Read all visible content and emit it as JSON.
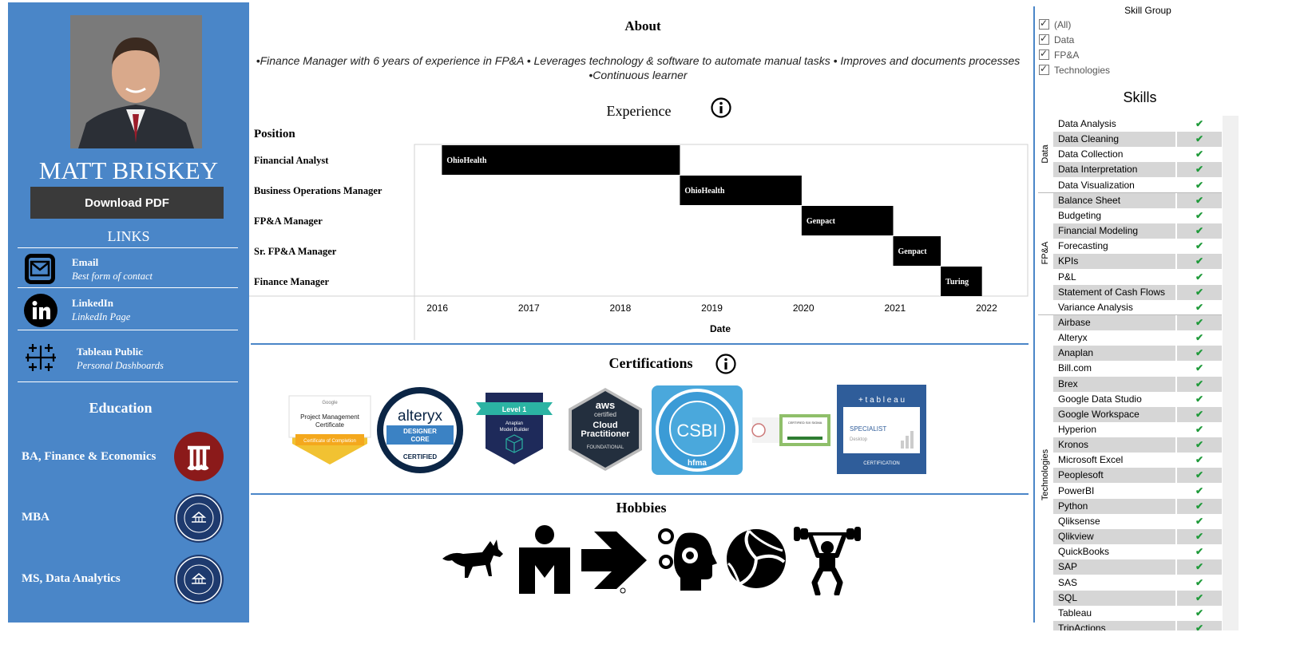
{
  "profile": {
    "name": "MATT BRISKEY",
    "download_label": "Download PDF",
    "links_title": "LINKS",
    "links": [
      {
        "title": "Email",
        "subtitle": "Best form of contact",
        "icon": "mail-icon"
      },
      {
        "title": "LinkedIn",
        "subtitle": "LinkedIn Page",
        "icon": "linkedin-icon"
      },
      {
        "title": "Tableau Public",
        "subtitle": "Personal Dashboards",
        "icon": "tableau-icon"
      }
    ],
    "education_title": "Education",
    "education": [
      {
        "degree": "BA, Finance & Economics",
        "icon": "ohio-university-seal"
      },
      {
        "degree": "MBA",
        "icon": "franklin-university-seal"
      },
      {
        "degree": "MS, Data Analytics",
        "icon": "franklin-university-seal"
      }
    ],
    "seal_text": "FRANKLIN UNIVERSITY",
    "colors": {
      "panel": "#4a86c8",
      "button": "#3a3a3a",
      "ohio_seal": "#8b1a1a",
      "franklin_seal": "#1e3a6e"
    }
  },
  "about": {
    "title": "About",
    "line1": "•Finance Manager with 6 years of experience in FP&A • Leverages technology & software to automate manual tasks • Improves and documents processes",
    "line2": "•Continuous learner"
  },
  "experience": {
    "title": "Experience",
    "position_header": "Position",
    "date_label": "Date"
  },
  "chart_data": {
    "type": "gantt",
    "categories": [
      "Financial Analyst",
      "Business Operations Manager",
      "FP&A Manager",
      "Sr. FP&A Manager",
      "Finance Manager"
    ],
    "bars": [
      {
        "position": "Financial Analyst",
        "start": 2016.05,
        "end": 2018.65,
        "label": "OhioHealth"
      },
      {
        "position": "Business Operations Manager",
        "start": 2018.65,
        "end": 2019.98,
        "label": "OhioHealth"
      },
      {
        "position": "FP&A Manager",
        "start": 2019.98,
        "end": 2020.98,
        "label": "Genpact"
      },
      {
        "position": "Sr. FP&A Manager",
        "start": 2020.98,
        "end": 2021.5,
        "label": "Genpact"
      },
      {
        "position": "Finance Manager",
        "start": 2021.5,
        "end": 2021.95,
        "label": "Turing"
      }
    ],
    "x_ticks": [
      "2016",
      "2017",
      "2018",
      "2019",
      "2020",
      "2021",
      "2022"
    ],
    "xlim": [
      2015.75,
      2022.45
    ],
    "xlabel": "Date",
    "ylabel": "Position",
    "bar_color": "#000000"
  },
  "certifications": {
    "title": "Certifications",
    "items": [
      {
        "name": "google-pm-badge",
        "lines": [
          "Google",
          "Project Management",
          "Certificate",
          "Certificate of Completion"
        ]
      },
      {
        "name": "alteryx-badge",
        "lines": [
          "alteryx",
          "DESIGNER",
          "CORE",
          "CERTIFIED"
        ]
      },
      {
        "name": "anaplan-badge",
        "lines": [
          "Level 1",
          "Anaplan",
          "Model Builder"
        ]
      },
      {
        "name": "aws-badge",
        "lines": [
          "aws",
          "certified",
          "Cloud",
          "Practitioner",
          "FOUNDATIONAL"
        ]
      },
      {
        "name": "csbi-badge",
        "lines": [
          "CSBI",
          "hfma"
        ]
      },
      {
        "name": "scrum-badge",
        "lines": [
          "CERTIFIED SIX SIGMA"
        ]
      },
      {
        "name": "tableau-badge",
        "lines": [
          "+ t a b l e a u",
          "SPECIALIST",
          "Desktop",
          "CERTIFICATION"
        ]
      }
    ]
  },
  "hobbies": {
    "title": "Hobbies",
    "icons": [
      "dog-icon",
      "ironman-icon",
      "arrow-icon",
      "gears-head-icon",
      "volleyball-icon",
      "weightlifting-icon"
    ]
  },
  "filter": {
    "title": "Skill Group",
    "options": [
      "(All)",
      "Data",
      "FP&A",
      "Technologies"
    ]
  },
  "skills": {
    "title": "Skills",
    "groups": [
      {
        "name": "Data",
        "items": [
          "Data Analysis",
          "Data Cleaning",
          "Data Collection",
          "Data Interpretation",
          "Data Visualization"
        ]
      },
      {
        "name": "FP&A",
        "items": [
          "Balance Sheet",
          "Budgeting",
          "Financial Modeling",
          "Forecasting",
          "KPIs",
          "P&L",
          "Statement of Cash Flows",
          "Variance Analysis"
        ]
      },
      {
        "name": "Technologies",
        "items": [
          "Airbase",
          "Alteryx",
          "Anaplan",
          "Bill.com",
          "Brex",
          "Google Data Studio",
          "Google Workspace",
          "Hyperion",
          "Kronos",
          "Microsoft Excel",
          "Peoplesoft",
          "PowerBI",
          "Python",
          "Qliksense",
          "Qlikview",
          "QuickBooks",
          "SAP",
          "SAS",
          "SQL",
          "Tableau",
          "TripActions"
        ]
      }
    ],
    "check": "✔"
  }
}
